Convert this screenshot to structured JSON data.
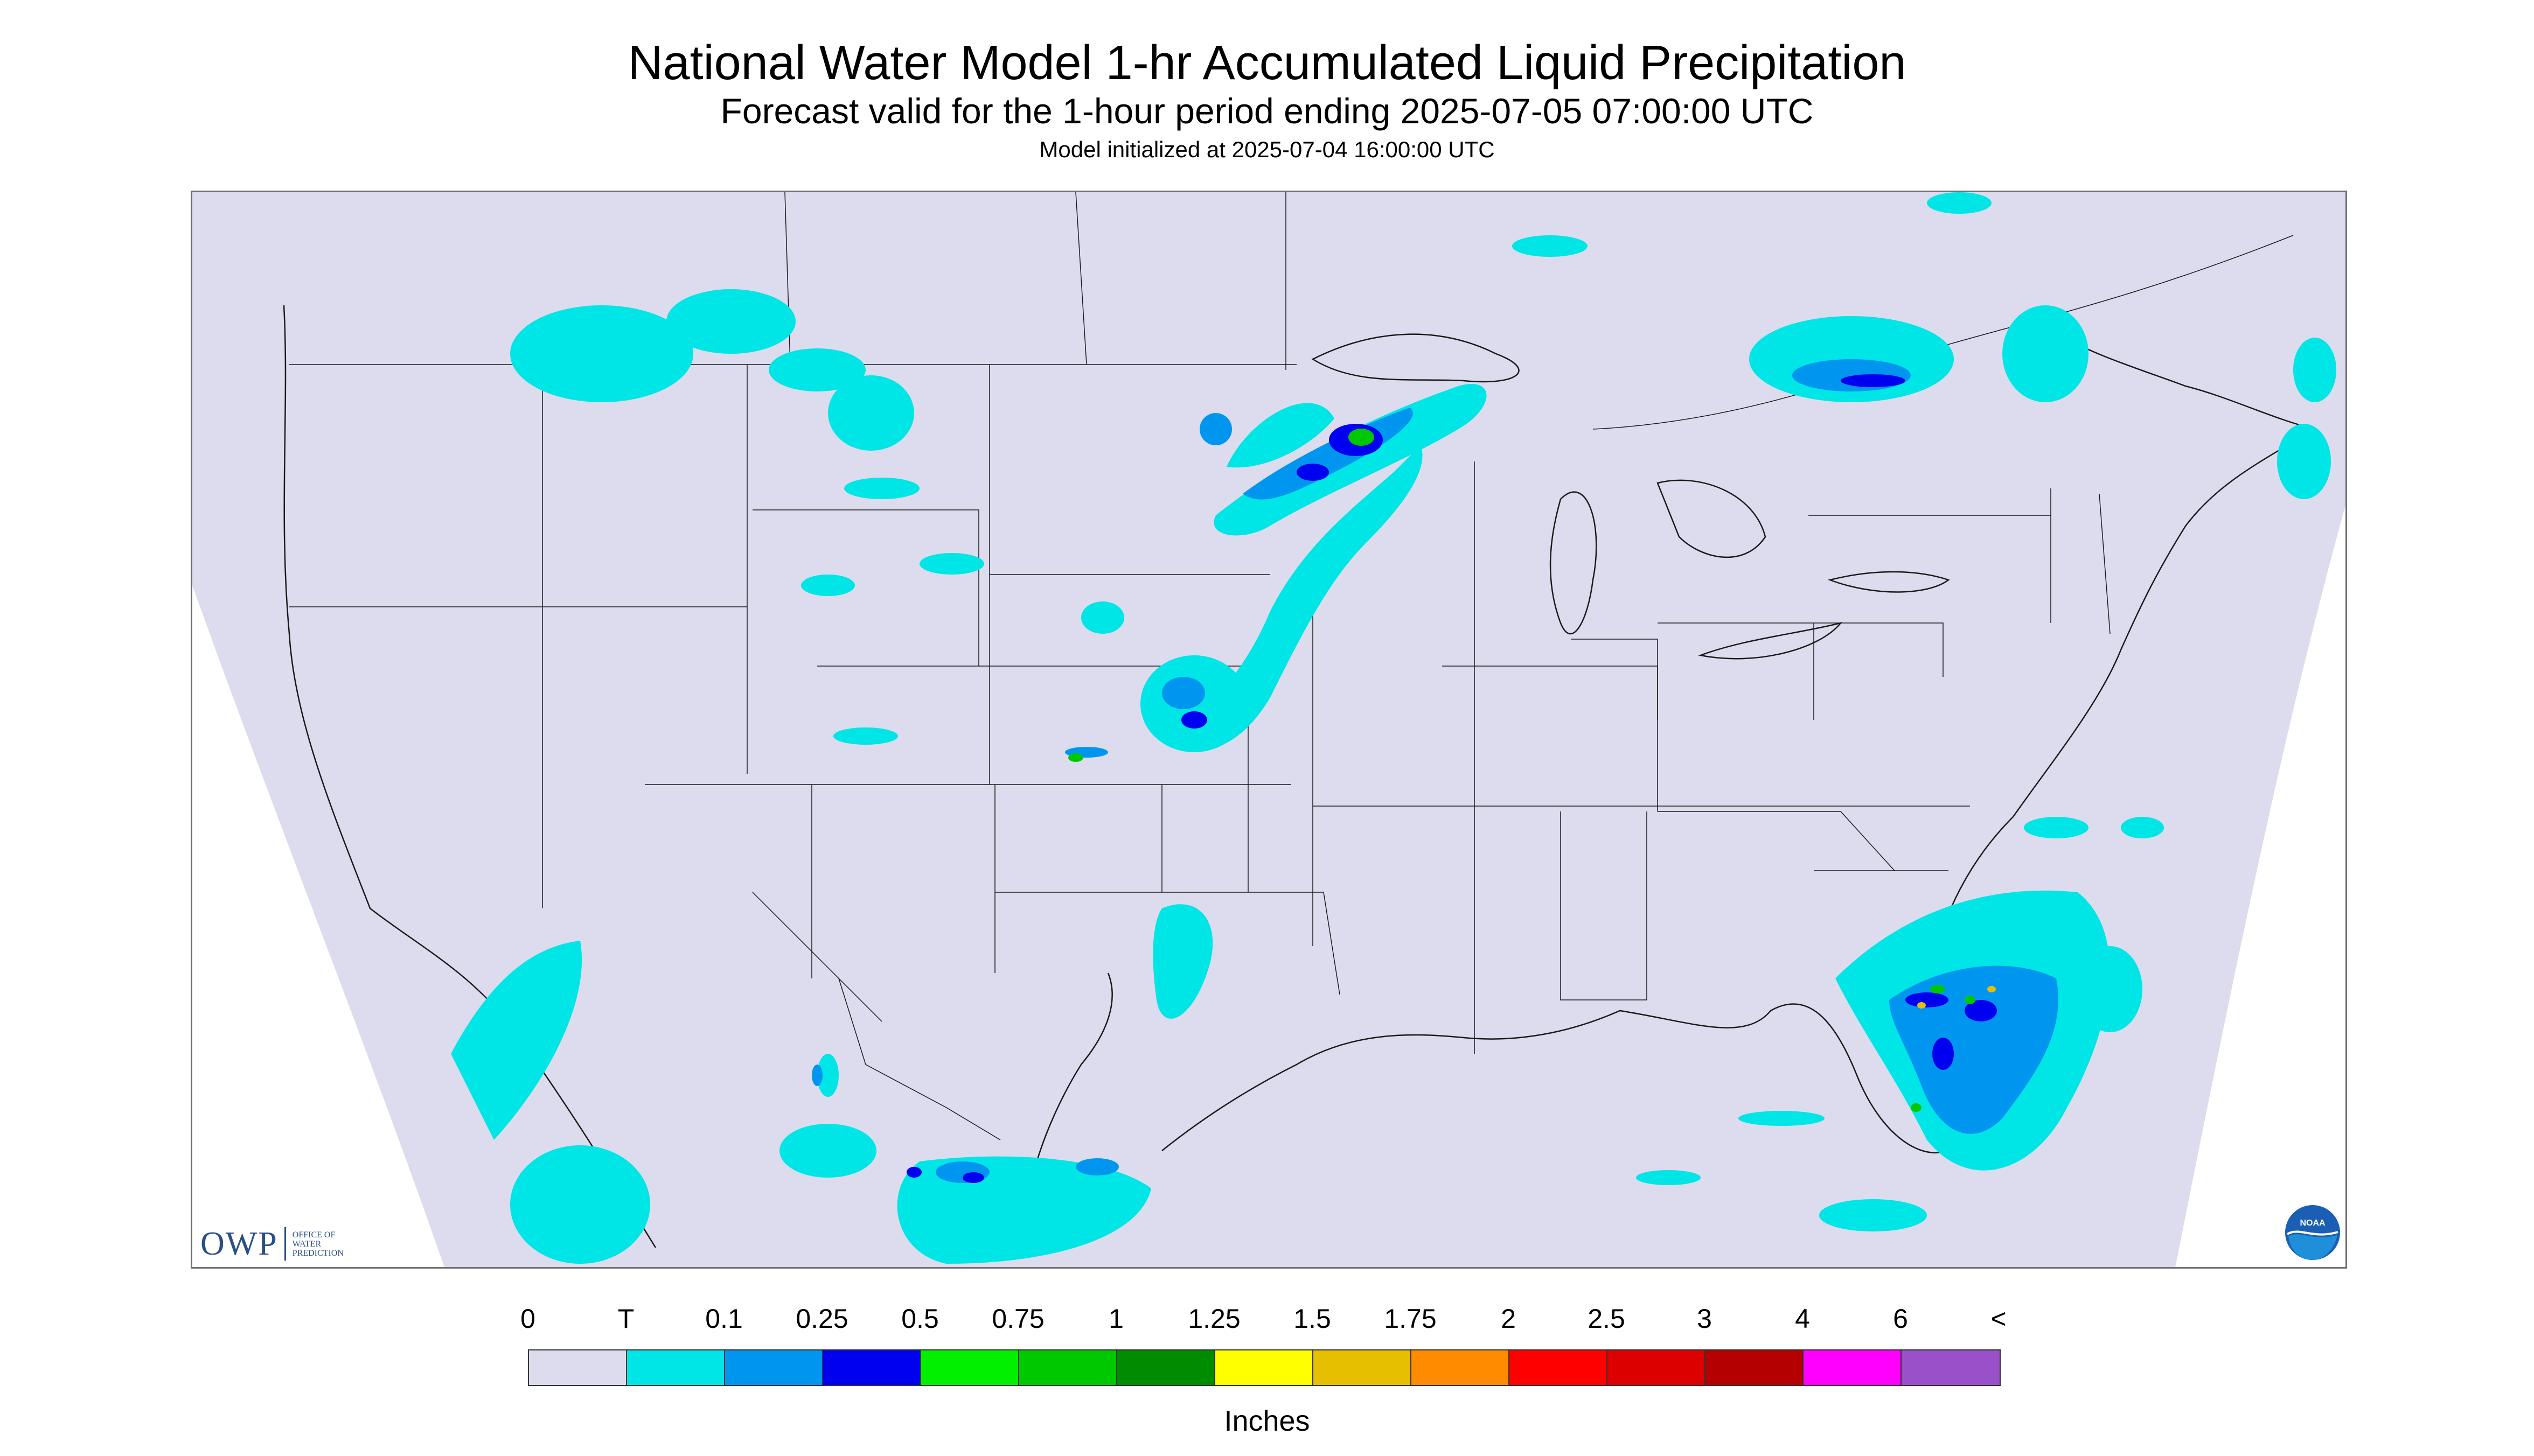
{
  "header": {
    "title": "National Water Model 1-hr Accumulated Liquid Precipitation",
    "subtitle": "Forecast valid for the 1-hour period ending 2025-07-05 07:00:00 UTC",
    "init": "Model initialized at 2025-07-04 16:00:00 UTC"
  },
  "logos": {
    "owp_mark": "OWP",
    "owp_sub": [
      "OFFICE OF",
      "WATER",
      "PREDICTION"
    ],
    "noaa": "NOAA"
  },
  "legend": {
    "labels": [
      "0",
      "T",
      "0.1",
      "0.25",
      "0.5",
      "0.75",
      "1",
      "1.25",
      "1.5",
      "1.75",
      "2",
      "2.5",
      "3",
      "4",
      "6",
      "<"
    ],
    "colors": [
      "#dcdcee",
      "#00e5e5",
      "#0096f0",
      "#0000f0",
      "#00f000",
      "#00c800",
      "#008c00",
      "#ffff00",
      "#e6c000",
      "#ff8c00",
      "#ff0000",
      "#dc0000",
      "#b40000",
      "#ff00ff",
      "#9a50c8"
    ],
    "units": "Inches"
  },
  "colors": {
    "background_field": "#dcdcee",
    "border_lines": "#1a1a1a"
  }
}
